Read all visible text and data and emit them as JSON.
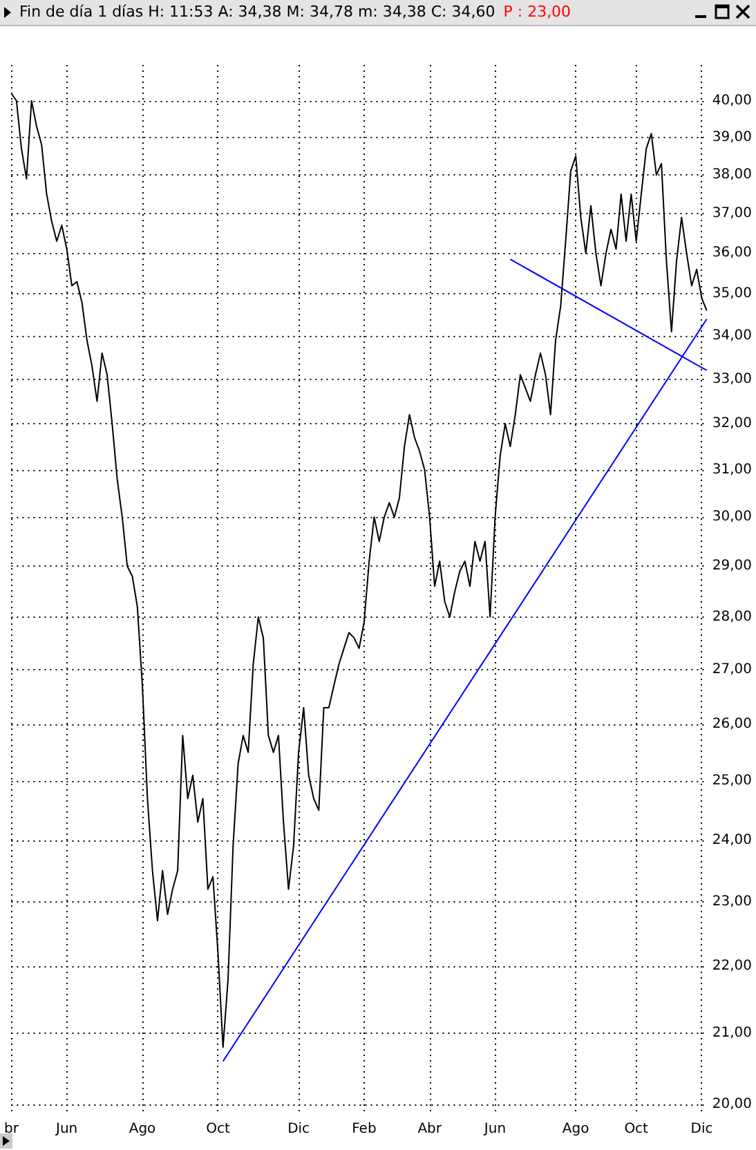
{
  "chart_data": {
    "type": "line",
    "title": "Fin de día 1 días  H: 11:53  A: 34,38  M: 34,78  m: 34,38  C: 34,60",
    "annotations": [
      "P : 23,00"
    ],
    "log": "y",
    "grid": true,
    "marker": "none",
    "line_style": "solid",
    "categories": [
      "br",
      null,
      null,
      null,
      null,
      null,
      null,
      null,
      null,
      null,
      null,
      "Jun",
      null,
      null,
      null,
      null,
      null,
      null,
      null,
      null,
      null,
      null,
      null,
      null,
      null,
      null,
      "Ago",
      null,
      null,
      null,
      null,
      null,
      null,
      null,
      null,
      null,
      null,
      null,
      null,
      null,
      null,
      "Oct",
      null,
      null,
      null,
      null,
      null,
      null,
      null,
      null,
      null,
      null,
      null,
      null,
      null,
      null,
      null,
      "Dic",
      null,
      null,
      null,
      null,
      null,
      null,
      null,
      null,
      null,
      null,
      null,
      null,
      "Feb",
      null,
      null,
      null,
      null,
      null,
      null,
      null,
      null,
      null,
      null,
      null,
      null,
      "Abr",
      null,
      null,
      null,
      null,
      null,
      null,
      null,
      null,
      null,
      null,
      null,
      null,
      "Jun",
      null,
      null,
      null,
      null,
      null,
      null,
      null,
      null,
      null,
      null,
      null,
      null,
      null,
      null,
      null,
      "Ago",
      null,
      null,
      null,
      null,
      null,
      null,
      null,
      null,
      null,
      null,
      null,
      "Oct",
      null,
      null,
      null,
      null,
      null,
      null,
      null,
      null,
      null,
      null,
      null,
      null,
      "Dic",
      null
    ],
    "ylim": [
      19.9,
      41
    ],
    "yticks": [
      {
        "value": 20,
        "label": "20,00"
      },
      {
        "value": 21,
        "label": "21,00"
      },
      {
        "value": 22,
        "label": "22,00"
      },
      {
        "value": 23,
        "label": "23,00"
      },
      {
        "value": 24,
        "label": "24,00"
      },
      {
        "value": 25,
        "label": "25,00"
      },
      {
        "value": 26,
        "label": "26,00"
      },
      {
        "value": 27,
        "label": "27,00"
      },
      {
        "value": 28,
        "label": "28,00"
      },
      {
        "value": 29,
        "label": "29,00"
      },
      {
        "value": 30,
        "label": "30,00"
      },
      {
        "value": 31,
        "label": "31,00"
      },
      {
        "value": 32,
        "label": "32,00"
      },
      {
        "value": 33,
        "label": "33,00"
      },
      {
        "value": 34,
        "label": "34,00"
      },
      {
        "value": 35,
        "label": "35,00"
      },
      {
        "value": 36,
        "label": "36,00"
      },
      {
        "value": 37,
        "label": "37,00"
      },
      {
        "value": 38,
        "label": "38,00"
      },
      {
        "value": 39,
        "label": "39,00"
      },
      {
        "value": 40,
        "label": "40,00"
      }
    ],
    "series": [
      {
        "color": "#000000",
        "values": [
          40.2,
          40.0,
          38.7,
          37.9,
          40.0,
          39.3,
          38.8,
          37.5,
          36.8,
          36.3,
          36.7,
          36.1,
          35.2,
          35.3,
          34.8,
          33.9,
          33.3,
          32.5,
          33.6,
          33.1,
          32.0,
          30.8,
          30.0,
          29.0,
          28.8,
          28.2,
          26.7,
          24.7,
          23.5,
          22.7,
          23.5,
          22.8,
          23.2,
          23.5,
          25.8,
          24.7,
          25.1,
          24.3,
          24.7,
          23.2,
          23.4,
          22.2,
          20.8,
          21.8,
          23.9,
          25.3,
          25.8,
          25.5,
          27.1,
          28.0,
          27.6,
          25.8,
          25.5,
          25.8,
          24.3,
          23.2,
          23.9,
          25.5,
          26.3,
          25.1,
          24.7,
          24.5,
          26.3,
          26.3,
          26.7,
          27.1,
          27.4,
          27.7,
          27.6,
          27.4,
          27.9,
          29.1,
          30.0,
          29.5,
          30.0,
          30.3,
          30.0,
          30.4,
          31.5,
          32.2,
          31.7,
          31.4,
          31.0,
          30.0,
          28.6,
          29.1,
          28.3,
          28.0,
          28.5,
          28.9,
          29.1,
          28.6,
          29.5,
          29.1,
          29.5,
          28.0,
          30.0,
          31.3,
          32.0,
          31.5,
          32.2,
          33.1,
          32.8,
          32.5,
          33.1,
          33.6,
          33.1,
          32.2,
          33.9,
          34.7,
          36.3,
          38.1,
          38.5,
          36.9,
          36.0,
          37.2,
          36.0,
          35.2,
          36.0,
          36.6,
          36.1,
          37.5,
          36.3,
          37.5,
          36.3,
          37.5,
          38.7,
          39.1,
          38.0,
          38.3,
          35.8,
          34.1,
          35.8,
          36.9,
          36.0,
          35.2,
          35.6,
          34.9,
          34.6
        ]
      },
      {
        "color": "#0000ff",
        "values": [
          null,
          null,
          null,
          null,
          null,
          null,
          null,
          null,
          null,
          null,
          null,
          null,
          null,
          null,
          null,
          null,
          null,
          null,
          null,
          null,
          null,
          null,
          null,
          null,
          null,
          null,
          null,
          null,
          null,
          null,
          null,
          null,
          null,
          null,
          null,
          null,
          null,
          null,
          null,
          null,
          null,
          null,
          20.6,
          null,
          null,
          null,
          null,
          null,
          null,
          null,
          null,
          null,
          null,
          null,
          null,
          null,
          null,
          null,
          null,
          null,
          null,
          null,
          null,
          null,
          null,
          null,
          null,
          null,
          null,
          null,
          null,
          null,
          null,
          null,
          null,
          null,
          null,
          null,
          null,
          null,
          null,
          null,
          null,
          null,
          null,
          null,
          null,
          null,
          null,
          null,
          null,
          null,
          null,
          null,
          null,
          null,
          null,
          null,
          null,
          null,
          null,
          null,
          null,
          null,
          null,
          null,
          null,
          null,
          null,
          null,
          null,
          null,
          null,
          null,
          null,
          null,
          null,
          null,
          null,
          null,
          null,
          null,
          null,
          null,
          null,
          null,
          null,
          null,
          null,
          null,
          null,
          null,
          null,
          null,
          null,
          null,
          null,
          null,
          34.4
        ]
      },
      {
        "color": "#0000ff",
        "values": [
          null,
          null,
          null,
          null,
          null,
          null,
          null,
          null,
          null,
          null,
          null,
          null,
          null,
          null,
          null,
          null,
          null,
          null,
          null,
          null,
          null,
          null,
          null,
          null,
          null,
          null,
          null,
          null,
          null,
          null,
          null,
          null,
          null,
          null,
          null,
          null,
          null,
          null,
          null,
          null,
          null,
          null,
          null,
          null,
          null,
          null,
          null,
          null,
          null,
          null,
          null,
          null,
          null,
          null,
          null,
          null,
          null,
          null,
          null,
          null,
          null,
          null,
          null,
          null,
          null,
          null,
          null,
          null,
          null,
          null,
          null,
          null,
          null,
          null,
          null,
          null,
          null,
          null,
          null,
          null,
          null,
          null,
          null,
          null,
          null,
          null,
          null,
          null,
          null,
          null,
          null,
          null,
          null,
          null,
          null,
          null,
          null,
          null,
          null,
          35.85,
          null,
          null,
          null,
          null,
          null,
          null,
          null,
          null,
          null,
          null,
          null,
          null,
          null,
          null,
          null,
          null,
          null,
          null,
          null,
          null,
          null,
          null,
          null,
          null,
          null,
          null,
          null,
          null,
          null,
          null,
          null,
          null,
          null,
          null,
          null,
          null,
          null,
          null,
          33.2
        ]
      }
    ]
  }
}
